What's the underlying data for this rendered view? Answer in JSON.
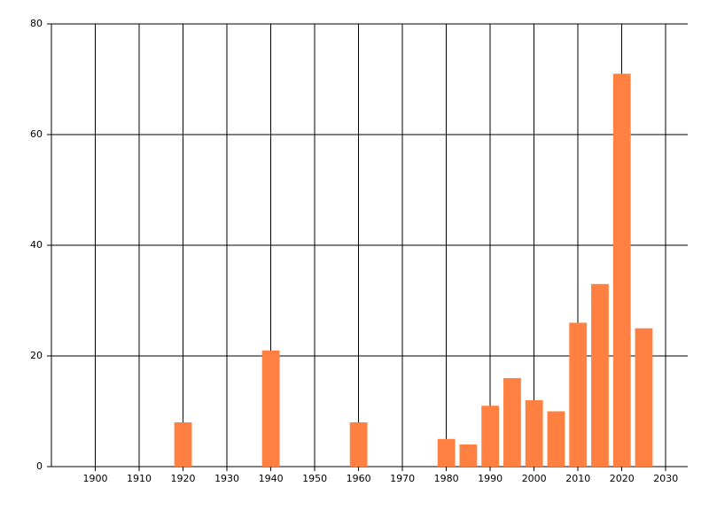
{
  "chart_data": {
    "type": "bar",
    "x": [
      1920,
      1940,
      1960,
      1980,
      1985,
      1990,
      1995,
      2000,
      2005,
      2010,
      2015,
      2020,
      2025
    ],
    "values": [
      8,
      21,
      8,
      5,
      4,
      11,
      16,
      12,
      10,
      26,
      33,
      71,
      25
    ],
    "color": "#ff8040",
    "xlim": [
      1890,
      2035
    ],
    "xticks": [
      1900,
      1910,
      1920,
      1930,
      1940,
      1950,
      1960,
      1970,
      1980,
      1990,
      2000,
      2010,
      2020,
      2030
    ],
    "ylim": [
      0,
      80
    ],
    "yticks": [
      0,
      20,
      40,
      60,
      80
    ],
    "grid": true
  }
}
